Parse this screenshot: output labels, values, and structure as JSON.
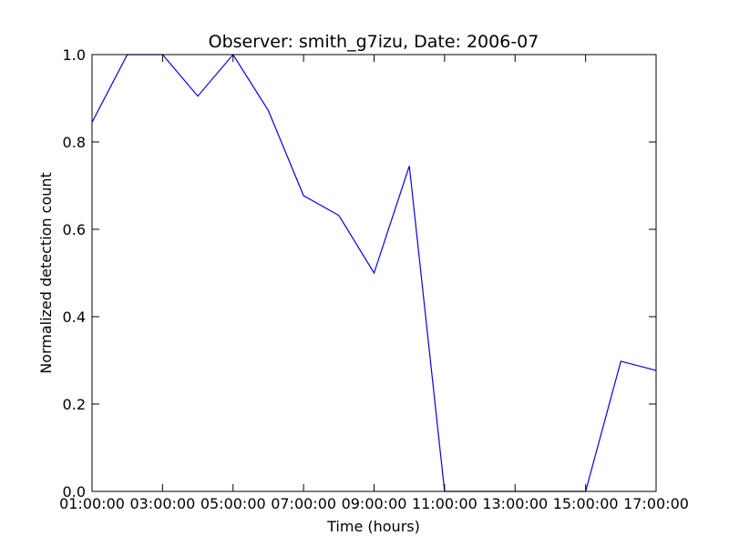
{
  "chart_data": {
    "type": "line",
    "title": "Observer: smith_g7izu, Date: 2006-07",
    "xlabel": "Time (hours)",
    "ylabel": "Normalized detection count",
    "x": [
      "01:00:00",
      "02:00:00",
      "03:00:00",
      "04:00:00",
      "05:00:00",
      "06:00:00",
      "07:00:00",
      "08:00:00",
      "09:00:00",
      "10:00:00",
      "11:00:00",
      "12:00:00",
      "13:00:00",
      "14:00:00",
      "15:00:00",
      "16:00:00",
      "17:00:00"
    ],
    "series": [
      {
        "values": [
          0.845,
          1.0,
          1.0,
          0.905,
          1.0,
          0.872,
          0.677,
          0.632,
          0.5,
          0.745,
          0.0,
          0.0,
          0.0,
          0.0,
          0.0,
          0.298,
          0.277
        ]
      }
    ],
    "xticks": [
      "01:00:00",
      "03:00:00",
      "05:00:00",
      "07:00:00",
      "09:00:00",
      "11:00:00",
      "13:00:00",
      "15:00:00",
      "17:00:00"
    ],
    "yticks": [
      "0.0",
      "0.2",
      "0.4",
      "0.6",
      "0.8",
      "1.0"
    ],
    "ylim": [
      0,
      1.0
    ],
    "xlim": [
      "01:00:00",
      "17:00:00"
    ],
    "grid": false,
    "line_color": "#0000ff"
  }
}
